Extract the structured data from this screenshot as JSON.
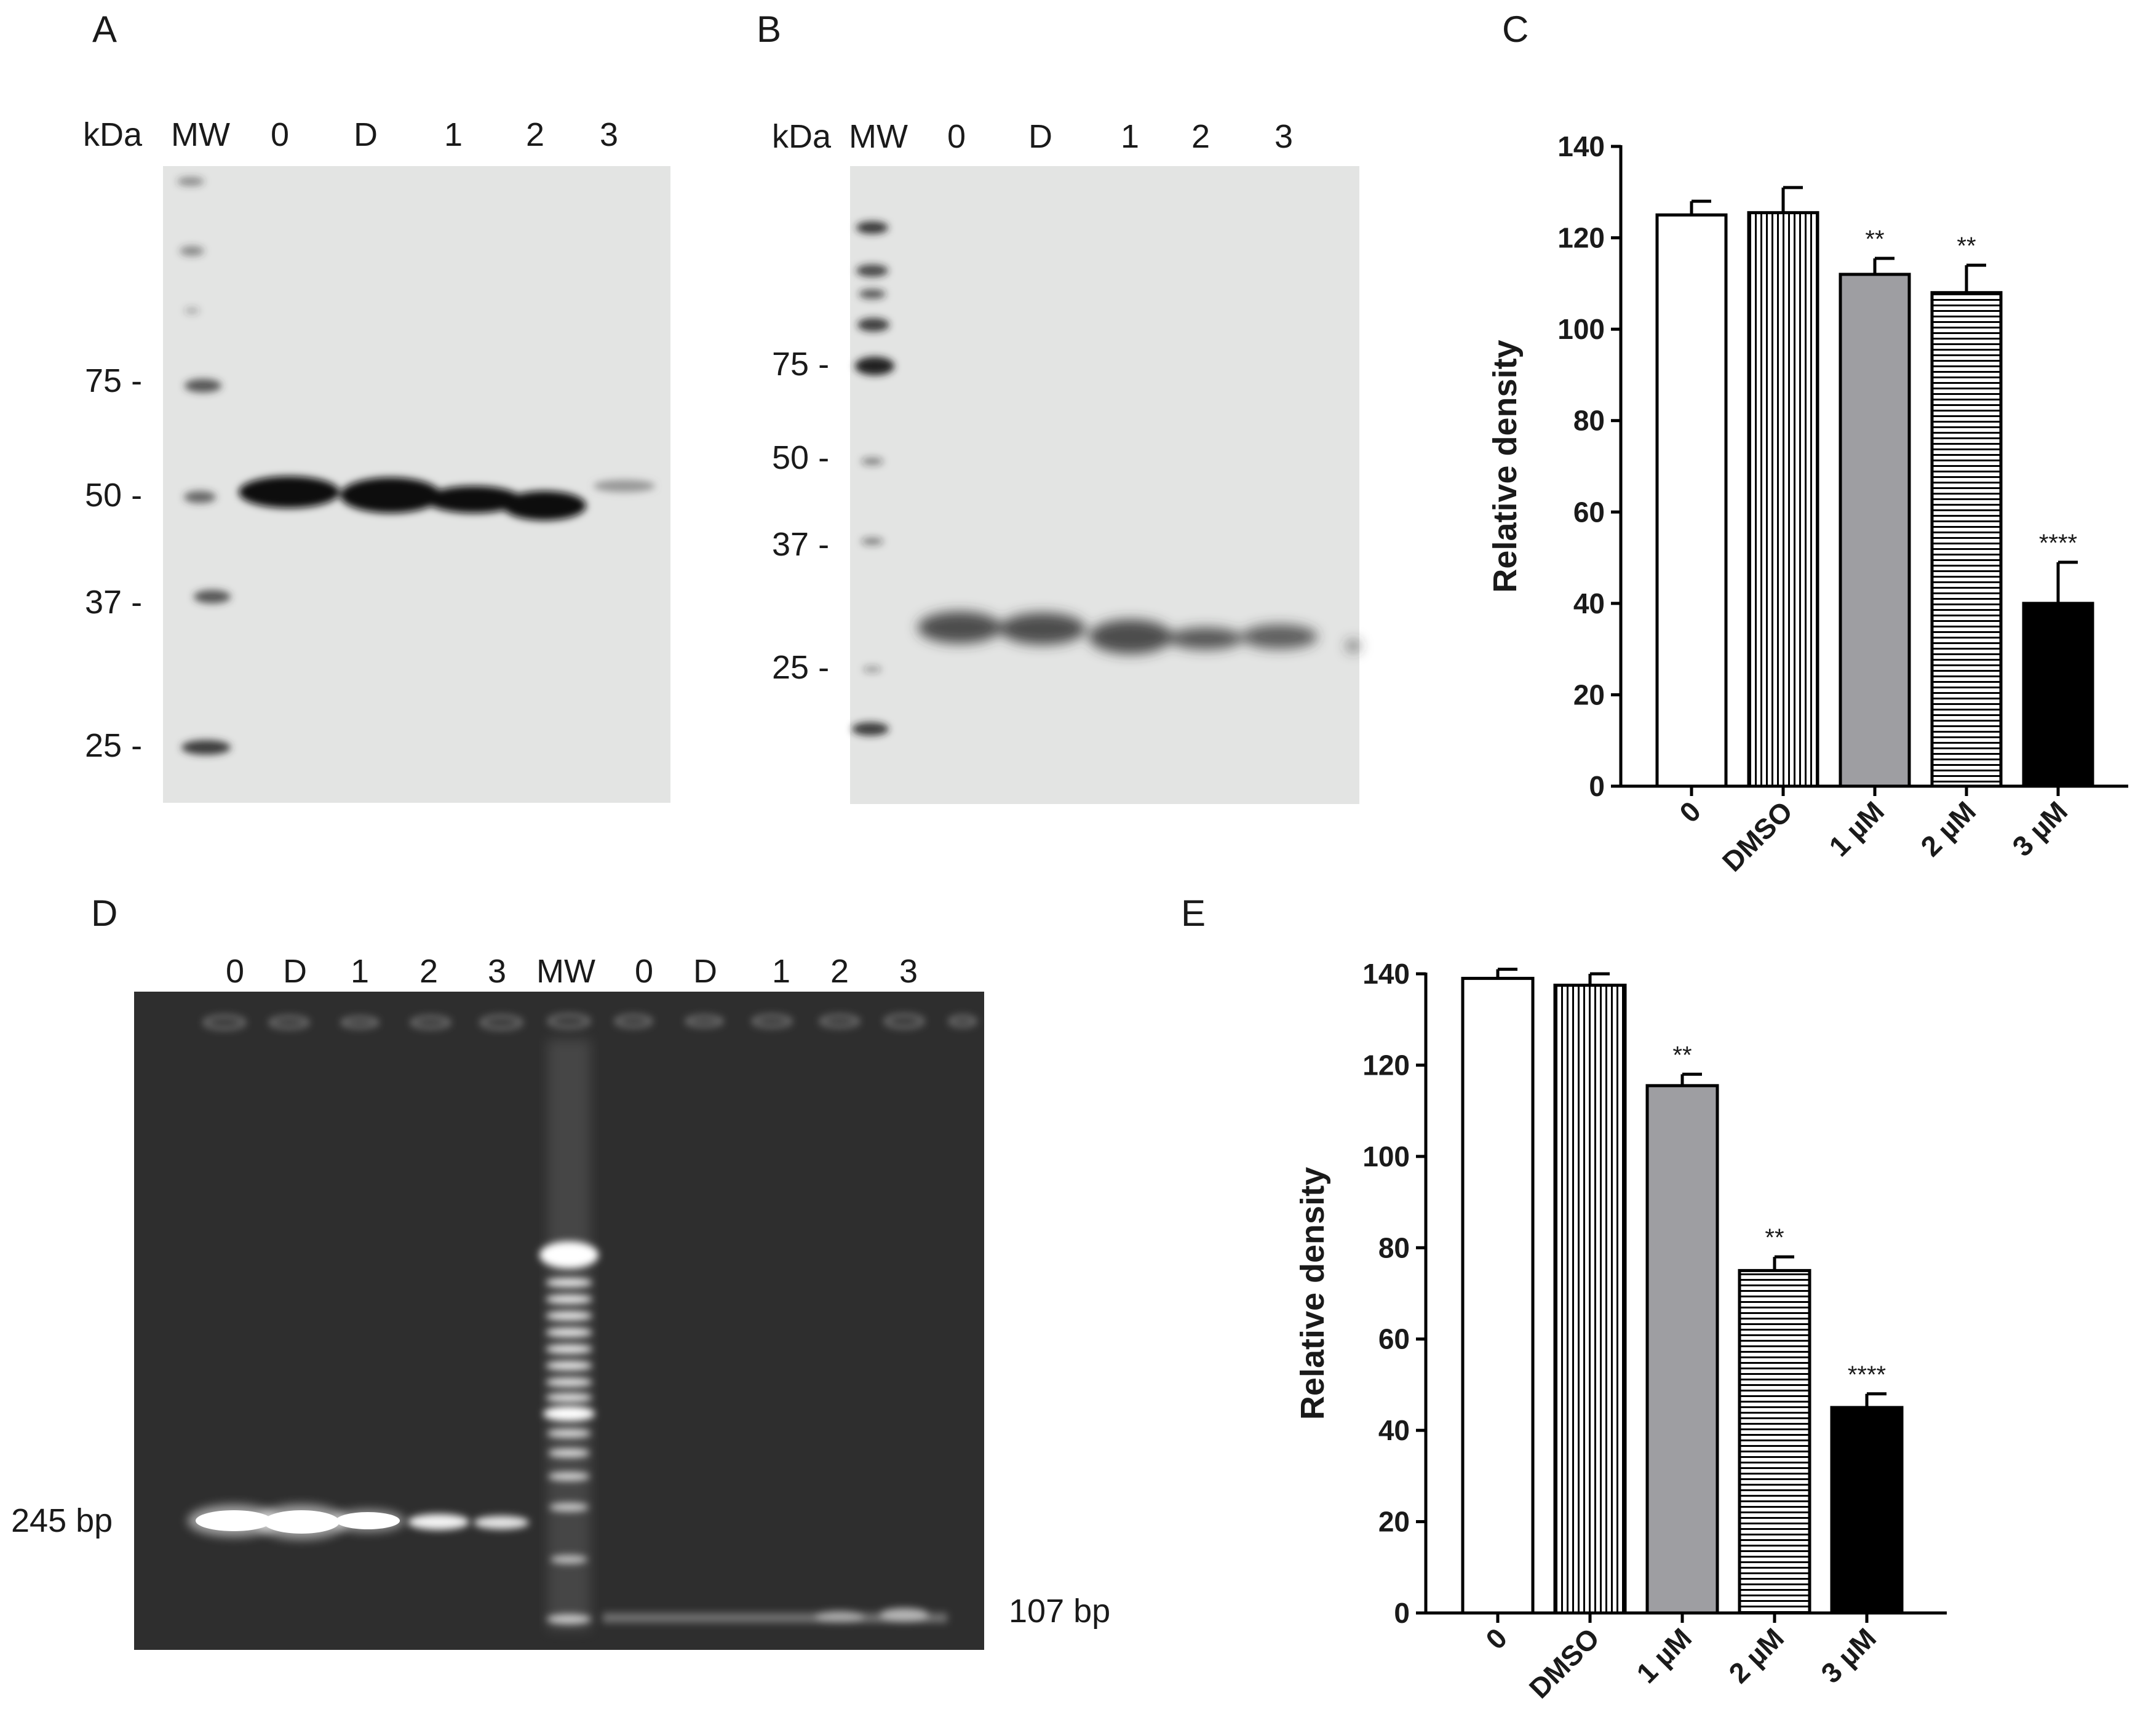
{
  "panel_a": {
    "letter": "A",
    "lanes": [
      "kDa",
      "MW",
      "0",
      "D",
      "1",
      "2",
      "3"
    ],
    "markers": [
      "75 -",
      "50 -",
      "37 -",
      "25 -"
    ]
  },
  "panel_b": {
    "letter": "B",
    "lanes": [
      "kDa",
      "MW",
      "0",
      "D",
      "1",
      "2",
      "3"
    ],
    "markers": [
      "75 -",
      "50 -",
      "37 -",
      "25 -"
    ]
  },
  "panel_d": {
    "letter": "D",
    "lanes": [
      "0",
      "D",
      "1",
      "2",
      "3",
      "MW",
      "0",
      "D",
      "1",
      "2",
      "3"
    ],
    "left_label": "245 bp",
    "right_label": "107 bp"
  },
  "colors": {
    "blot_bg": "#e3e4e3",
    "gel_bg": "#2e2e2e",
    "band_dark": "#111111",
    "band_bright": "#ffffff",
    "bar_gray": "#9e9ea2",
    "bar_black": "#000000"
  },
  "chart_data": [
    {
      "panel": "C",
      "type": "bar",
      "categories": [
        "0",
        "DMSO",
        "1 µM",
        "2 µM",
        "3 µM"
      ],
      "values": [
        125,
        125.5,
        112,
        108,
        40
      ],
      "errors": [
        3,
        5.5,
        3.5,
        6,
        9
      ],
      "significance": [
        "",
        "",
        "**",
        "**",
        "****"
      ],
      "patterns": [
        "white",
        "vertical-lines",
        "gray",
        "horizontal-lines",
        "black"
      ],
      "ylabel": "Relative density",
      "xlabel": "",
      "ylim": [
        0,
        140
      ],
      "yticks": [
        "0",
        "20",
        "40",
        "60",
        "80",
        "100",
        "120",
        "140"
      ],
      "grid": false
    },
    {
      "panel": "E",
      "type": "bar",
      "categories": [
        "0",
        "DMSO",
        "1 µM",
        "2 µM",
        "3 µM"
      ],
      "values": [
        139,
        137.5,
        115.5,
        75,
        45
      ],
      "errors": [
        2,
        2.5,
        2.5,
        3,
        3
      ],
      "significance": [
        "",
        "",
        "**",
        "**",
        "****"
      ],
      "patterns": [
        "white",
        "vertical-lines",
        "gray",
        "horizontal-lines",
        "black"
      ],
      "ylabel": "Relative density",
      "xlabel": "",
      "ylim": [
        0,
        140
      ],
      "yticks": [
        "0",
        "20",
        "40",
        "60",
        "80",
        "100",
        "120",
        "140"
      ],
      "grid": false
    }
  ]
}
